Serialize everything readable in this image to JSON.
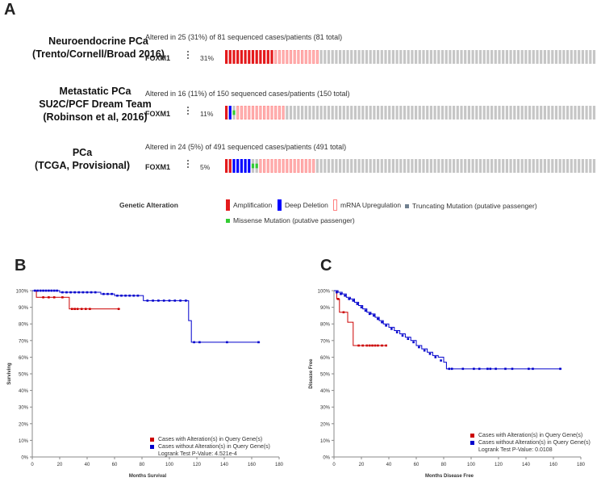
{
  "panels": {
    "a": "A",
    "b": "B",
    "c": "C"
  },
  "oncoprint": {
    "gene": "FOXM1",
    "studies": [
      {
        "name_lines": [
          "Neuroendocrine PCa",
          "(Trento/Cornell/Broad 2016)"
        ],
        "altered_text": "Altered in 25 (31%) of 81 sequenced cases/patients (81 total)",
        "pct": "31%",
        "cases": [
          "amp",
          "amp",
          "amp",
          "amp",
          "amp",
          "amp",
          "amp",
          "amp",
          "amp",
          "amp",
          "amp",
          "amp",
          "amp",
          "mrna",
          "mrna",
          "mrna",
          "mrna",
          "mrna",
          "mrna",
          "mrna",
          "mrna",
          "mrna",
          "mrna",
          "mrna",
          "mrna"
        ],
        "total": 81
      },
      {
        "name_lines": [
          "Metastatic PCa",
          "SU2C/PCF Dream Team",
          "(Robinson et al, 2016)"
        ],
        "altered_text": "Altered in 16 (11%) of 150 sequenced cases/patients (150 total)",
        "pct": "11%",
        "cases": [
          "amp",
          "del",
          "mis",
          "mrna",
          "mrna",
          "mrna",
          "mrna",
          "mrna",
          "mrna",
          "mrna",
          "mrna",
          "mrna",
          "mrna",
          "mrna",
          "mrna",
          "mrna"
        ],
        "total": 150
      },
      {
        "name_lines": [
          "PCa",
          "(TCGA, Provisional)"
        ],
        "altered_text": "Altered in 24 (5%) of 491 sequenced cases/patients (491 total)",
        "pct": "5%",
        "cases": [
          "amp",
          "amp",
          "del",
          "del",
          "del",
          "del",
          "del",
          "mis",
          "mis",
          "mrna",
          "mrna",
          "mrna",
          "mrna",
          "mrna",
          "mrna",
          "mrna",
          "mrna",
          "mrna",
          "mrna",
          "mrna",
          "mrna",
          "mrna",
          "mrna",
          "mrna"
        ],
        "total": 491
      }
    ],
    "legend": {
      "title": "Genetic Alteration",
      "items": [
        "Amplification",
        "Deep Deletion",
        "mRNA Upregulation",
        "Truncating Mutation (putative passenger)",
        "Missense Mutation (putative passenger)"
      ]
    },
    "colors": {
      "amp": "#e41a1c",
      "del": "#0000ff",
      "mrna_fill": "#ffb6b6",
      "mrna_border": "#ff9999",
      "mis": "#33cc33",
      "trunc": "#708090",
      "unaltered": "#c6c6c6"
    }
  },
  "chart_data": [
    {
      "type": "line",
      "panel": "B",
      "xlabel": "Months Survival",
      "ylabel": "Surviving",
      "xlim": [
        0,
        180
      ],
      "ylim": [
        0,
        100
      ],
      "x_ticks": [
        "0",
        "20",
        "40",
        "60",
        "80",
        "100",
        "120",
        "140",
        "160",
        "180"
      ],
      "y_ticks": [
        "0%",
        "10%",
        "20%",
        "30%",
        "40%",
        "50%",
        "60%",
        "70%",
        "80%",
        "90%",
        "100%"
      ],
      "series": [
        {
          "name": "Cases with Alteration(s) in Query Gene(s)",
          "color": "#cc0000",
          "steps": [
            [
              0,
              100
            ],
            [
              3,
              96
            ],
            [
              27,
              96
            ],
            [
              27,
              89
            ],
            [
              64,
              89
            ]
          ],
          "censor": [
            [
              8,
              96
            ],
            [
              12,
              96
            ],
            [
              16,
              96
            ],
            [
              22,
              96
            ],
            [
              29,
              89
            ],
            [
              31,
              89
            ],
            [
              33,
              89
            ],
            [
              36,
              89
            ],
            [
              39,
              89
            ],
            [
              42,
              89
            ],
            [
              63,
              89
            ]
          ]
        },
        {
          "name": "Cases without Alteration(s) in Query Gene(s)",
          "color": "#0000cc",
          "steps": [
            [
              0,
              100
            ],
            [
              20,
              100
            ],
            [
              20,
              99
            ],
            [
              50,
              99
            ],
            [
              50,
              98
            ],
            [
              60,
              98
            ],
            [
              60,
              97
            ],
            [
              81,
              97
            ],
            [
              81,
              94
            ],
            [
              114,
              94
            ],
            [
              114,
              82
            ],
            [
              116,
              82
            ],
            [
              116,
              69
            ],
            [
              166,
              69
            ]
          ],
          "censor": [
            [
              2,
              100
            ],
            [
              4,
              100
            ],
            [
              6,
              100
            ],
            [
              8,
              100
            ],
            [
              10,
              100
            ],
            [
              12,
              100
            ],
            [
              14,
              100
            ],
            [
              16,
              100
            ],
            [
              18,
              100
            ],
            [
              22,
              99
            ],
            [
              25,
              99
            ],
            [
              28,
              99
            ],
            [
              31,
              99
            ],
            [
              34,
              99
            ],
            [
              37,
              99
            ],
            [
              40,
              99
            ],
            [
              43,
              99
            ],
            [
              46,
              99
            ],
            [
              52,
              98
            ],
            [
              55,
              98
            ],
            [
              58,
              98
            ],
            [
              62,
              97
            ],
            [
              65,
              97
            ],
            [
              68,
              97
            ],
            [
              71,
              97
            ],
            [
              74,
              97
            ],
            [
              77,
              97
            ],
            [
              84,
              94
            ],
            [
              88,
              94
            ],
            [
              92,
              94
            ],
            [
              96,
              94
            ],
            [
              100,
              94
            ],
            [
              104,
              94
            ],
            [
              108,
              94
            ],
            [
              112,
              94
            ],
            [
              118,
              69
            ],
            [
              122,
              69
            ],
            [
              142,
              69
            ],
            [
              165,
              69
            ]
          ]
        }
      ],
      "logrank": "Logrank Test P-Value: 4.521e-4"
    },
    {
      "type": "line",
      "panel": "C",
      "xlabel": "Months Disease Free",
      "ylabel": "Disease Free",
      "xlim": [
        0,
        180
      ],
      "ylim": [
        0,
        100
      ],
      "x_ticks": [
        "0",
        "20",
        "40",
        "60",
        "80",
        "100",
        "120",
        "140",
        "160",
        "180"
      ],
      "y_ticks": [
        "0%",
        "10%",
        "20%",
        "30%",
        "40%",
        "50%",
        "60%",
        "70%",
        "80%",
        "90%",
        "100%"
      ],
      "series": [
        {
          "name": "Cases with Alteration(s) in Query Gene(s)",
          "color": "#cc0000",
          "steps": [
            [
              0,
              100
            ],
            [
              2,
              95
            ],
            [
              4,
              93
            ],
            [
              4,
              87
            ],
            [
              10,
              87
            ],
            [
              10,
              81
            ],
            [
              13,
              81
            ],
            [
              14,
              67
            ],
            [
              38,
              67
            ]
          ],
          "censor": [
            [
              3,
              95
            ],
            [
              7,
              87
            ],
            [
              18,
              67
            ],
            [
              21,
              67
            ],
            [
              24,
              67
            ],
            [
              26,
              67
            ],
            [
              28,
              67
            ],
            [
              30,
              67
            ],
            [
              32,
              67
            ],
            [
              35,
              67
            ],
            [
              38,
              67
            ]
          ]
        },
        {
          "name": "Cases without Alteration(s) in Query Gene(s)",
          "color": "#0000cc",
          "steps": [
            [
              0,
              100
            ],
            [
              3,
              99
            ],
            [
              6,
              98
            ],
            [
              9,
              96
            ],
            [
              12,
              95
            ],
            [
              15,
              93
            ],
            [
              18,
              91
            ],
            [
              21,
              89
            ],
            [
              24,
              87
            ],
            [
              27,
              86
            ],
            [
              30,
              84
            ],
            [
              33,
              82
            ],
            [
              36,
              80
            ],
            [
              40,
              78
            ],
            [
              44,
              76
            ],
            [
              48,
              74
            ],
            [
              52,
              72
            ],
            [
              56,
              70
            ],
            [
              60,
              67
            ],
            [
              64,
              65
            ],
            [
              68,
              63
            ],
            [
              72,
              61
            ],
            [
              76,
              60
            ],
            [
              80,
              57
            ],
            [
              82,
              53
            ],
            [
              166,
              53
            ]
          ],
          "censor": [
            [
              2,
              99
            ],
            [
              5,
              98
            ],
            [
              8,
              97
            ],
            [
              11,
              95
            ],
            [
              14,
              94
            ],
            [
              17,
              92
            ],
            [
              20,
              90
            ],
            [
              23,
              88
            ],
            [
              26,
              86
            ],
            [
              29,
              85
            ],
            [
              32,
              83
            ],
            [
              35,
              81
            ],
            [
              38,
              79
            ],
            [
              42,
              77
            ],
            [
              46,
              75
            ],
            [
              50,
              73
            ],
            [
              54,
              71
            ],
            [
              58,
              69
            ],
            [
              62,
              66
            ],
            [
              66,
              64
            ],
            [
              70,
              62
            ],
            [
              74,
              60
            ],
            [
              78,
              58
            ],
            [
              84,
              53
            ],
            [
              86,
              53
            ],
            [
              94,
              53
            ],
            [
              102,
              53
            ],
            [
              106,
              53
            ],
            [
              112,
              53
            ],
            [
              114,
              53
            ],
            [
              118,
              53
            ],
            [
              125,
              53
            ],
            [
              130,
              53
            ],
            [
              142,
              53
            ],
            [
              145,
              53
            ],
            [
              165,
              53
            ]
          ]
        }
      ],
      "logrank": "Logrank Test P-Value: 0.0108"
    }
  ]
}
